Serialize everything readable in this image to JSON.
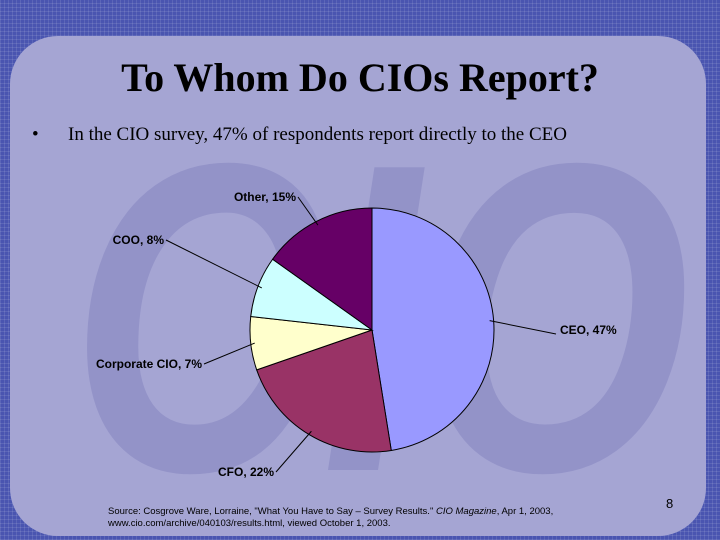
{
  "slide": {
    "title": "To Whom Do CIOs Report?",
    "bullet": "In the CIO survey, 47% of respondents report directly to the CEO",
    "bullet_marker": "•",
    "watermark_text": "CIO",
    "page_number": "8"
  },
  "source": {
    "prefix": "Source: Cosgrove Ware, Lorraine, \"What You Have to Say – Survey Results.\" ",
    "magazine": "CIO Magazine",
    "suffix": ", Apr 1, 2003,",
    "line2": "www.cio.com/archive/040103/results.html, viewed October 1, 2003."
  },
  "colors": {
    "background": "#4a55b0",
    "panel": "#a5a5d3",
    "watermark": "#8585c0"
  },
  "chart_data": {
    "type": "pie",
    "title": "",
    "start_angle_deg": 0,
    "direction": "clockwise",
    "slices": [
      {
        "label": "CEO, 47%",
        "value": 47,
        "color": "#9999ff"
      },
      {
        "label": "CFO, 22%",
        "value": 22,
        "color": "#993366"
      },
      {
        "label": "Corporate CIO, 7%",
        "value": 7,
        "color": "#ffffcc"
      },
      {
        "label": "COO, 8%",
        "value": 8,
        "color": "#ccffff"
      },
      {
        "label": "Other, 15%",
        "value": 15,
        "color": "#660066"
      }
    ]
  }
}
